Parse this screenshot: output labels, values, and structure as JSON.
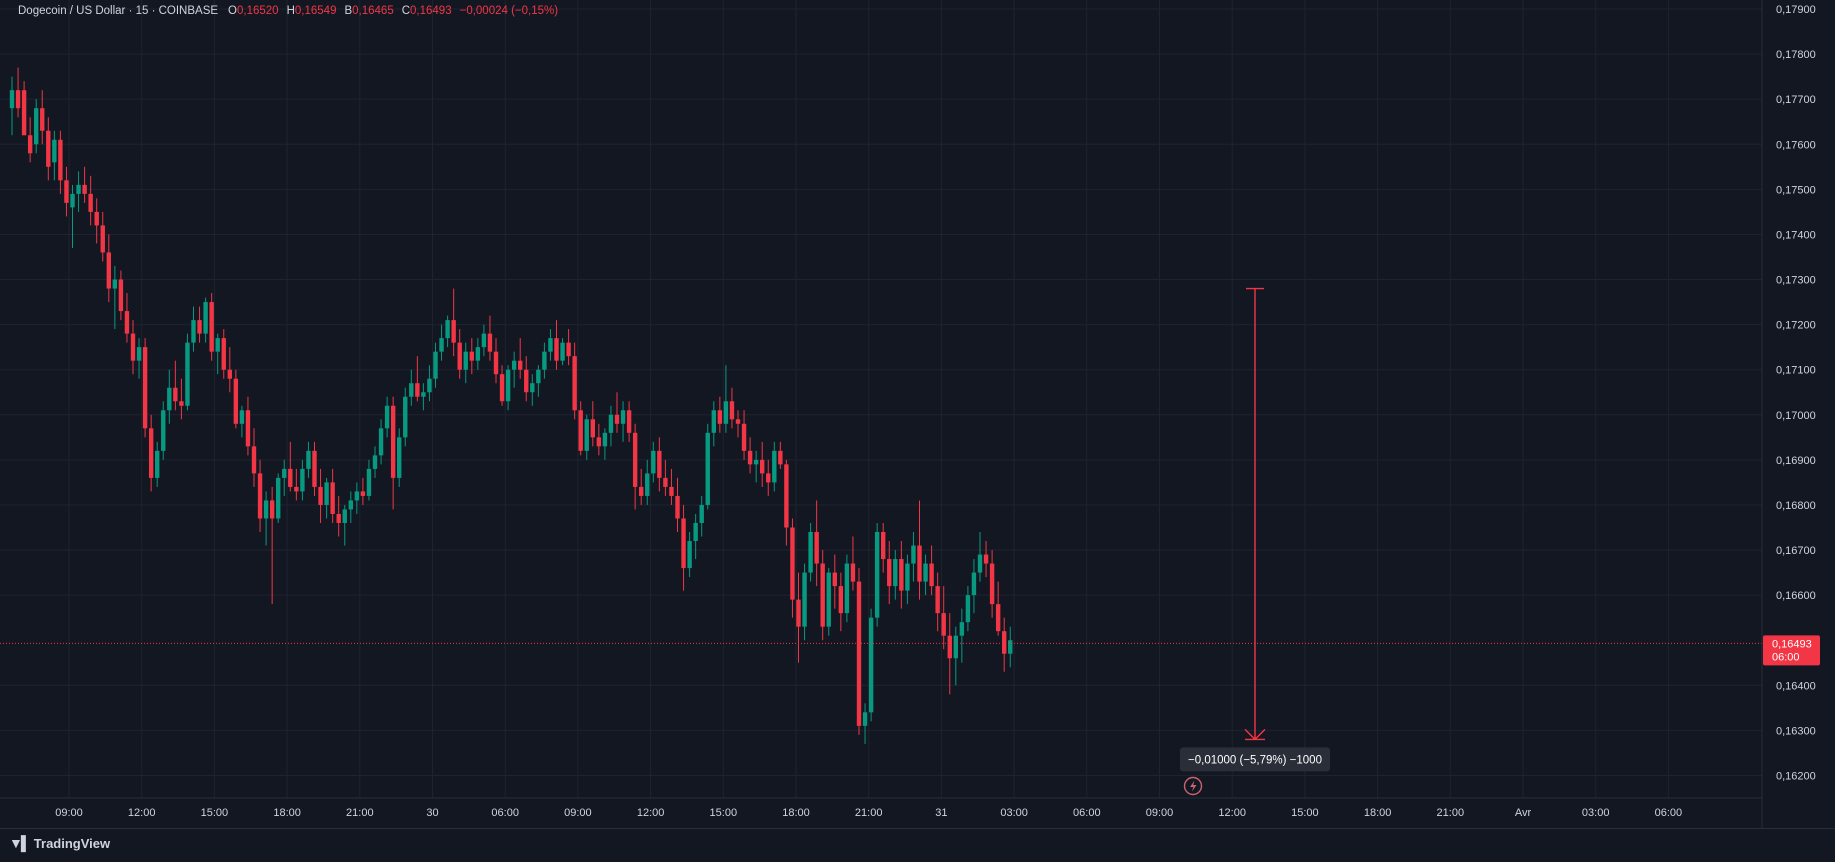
{
  "header": {
    "symbol": "Dogecoin / US Dollar · 15 · COINBASE",
    "o_label": "O",
    "o_value": "0,16520",
    "h_label": "H",
    "h_value": "0,16549",
    "b_label": "B",
    "b_value": "0,16465",
    "c_label": "C",
    "c_value": "0,16493",
    "change": "−0,00024 (−0,15%)"
  },
  "footer": {
    "brand": "TradingView"
  },
  "colors": {
    "up": "#089981",
    "down": "#f23645",
    "bg": "#131722",
    "grid": "#1f2330",
    "text": "#d1d4dc"
  },
  "chart_data": {
    "type": "candlestick",
    "symbol": "Dogecoin / US Dollar",
    "interval": "15",
    "exchange": "COINBASE",
    "ylim": [
      0.1615,
      0.1792
    ],
    "y_ticks": [
      "0,17900",
      "0,17800",
      "0,17700",
      "0,17600",
      "0,17500",
      "0,17400",
      "0,17300",
      "0,17200",
      "0,17100",
      "0,17000",
      "0,16900",
      "0,16800",
      "0,16700",
      "0,16600",
      "0,16400",
      "0,16300",
      "0,16200"
    ],
    "y_tick_values": [
      0.179,
      0.178,
      0.177,
      0.176,
      0.175,
      0.174,
      0.173,
      0.172,
      0.171,
      0.17,
      0.169,
      0.168,
      0.167,
      0.166,
      0.164,
      0.163,
      0.162
    ],
    "x_ticks": [
      "09:00",
      "12:00",
      "15:00",
      "18:00",
      "21:00",
      "30",
      "06:00",
      "09:00",
      "12:00",
      "15:00",
      "18:00",
      "21:00",
      "31",
      "03:00",
      "06:00",
      "09:00",
      "12:00",
      "15:00",
      "18:00",
      "21:00",
      "Avr",
      "03:00",
      "06:00"
    ],
    "last_price": {
      "value": 0.16493,
      "label": "0,16493",
      "countdown": "06:00"
    },
    "measure": {
      "from": 0.1728,
      "to": 0.1628,
      "label": "−0,01000 (−5,79%) −1000"
    },
    "candles": [
      [
        0.1768,
        0.1775,
        0.1762,
        0.1772
      ],
      [
        0.1772,
        0.1777,
        0.1766,
        0.1768
      ],
      [
        0.1772,
        0.1774,
        0.1762,
        0.1762
      ],
      [
        0.1762,
        0.1766,
        0.1756,
        0.1758
      ],
      [
        0.176,
        0.177,
        0.1758,
        0.1768
      ],
      [
        0.1768,
        0.1772,
        0.176,
        0.1763
      ],
      [
        0.1763,
        0.1766,
        0.1752,
        0.1755
      ],
      [
        0.1756,
        0.1763,
        0.1752,
        0.1761
      ],
      [
        0.1761,
        0.1763,
        0.1749,
        0.1752
      ],
      [
        0.1752,
        0.1755,
        0.1744,
        0.1747
      ],
      [
        0.1746,
        0.1751,
        0.1737,
        0.1749
      ],
      [
        0.1749,
        0.1754,
        0.1745,
        0.1751
      ],
      [
        0.1751,
        0.1755,
        0.1747,
        0.1749
      ],
      [
        0.1749,
        0.1753,
        0.1742,
        0.1745
      ],
      [
        0.1745,
        0.1748,
        0.1738,
        0.1742
      ],
      [
        0.1742,
        0.1745,
        0.1734,
        0.1736
      ],
      [
        0.1736,
        0.174,
        0.1725,
        0.1728
      ],
      [
        0.1728,
        0.1733,
        0.1719,
        0.173
      ],
      [
        0.173,
        0.1732,
        0.1721,
        0.1723
      ],
      [
        0.1723,
        0.1727,
        0.1716,
        0.1718
      ],
      [
        0.1718,
        0.1721,
        0.1709,
        0.1712
      ],
      [
        0.1712,
        0.1717,
        0.1708,
        0.1715
      ],
      [
        0.1715,
        0.1717,
        0.1695,
        0.1697
      ],
      [
        0.1697,
        0.17,
        0.1683,
        0.1686
      ],
      [
        0.1686,
        0.1694,
        0.1684,
        0.1692
      ],
      [
        0.1692,
        0.1703,
        0.169,
        0.1701
      ],
      [
        0.1701,
        0.171,
        0.1698,
        0.1706
      ],
      [
        0.1706,
        0.1712,
        0.1701,
        0.1703
      ],
      [
        0.1703,
        0.1708,
        0.1699,
        0.1702
      ],
      [
        0.1702,
        0.1718,
        0.1701,
        0.1716
      ],
      [
        0.1716,
        0.1724,
        0.1714,
        0.1721
      ],
      [
        0.1721,
        0.1724,
        0.1716,
        0.1718
      ],
      [
        0.1718,
        0.1726,
        0.1716,
        0.1725
      ],
      [
        0.1725,
        0.1727,
        0.1712,
        0.1714
      ],
      [
        0.1714,
        0.1718,
        0.1709,
        0.1717
      ],
      [
        0.1717,
        0.1719,
        0.1708,
        0.171
      ],
      [
        0.171,
        0.1715,
        0.1705,
        0.1708
      ],
      [
        0.1708,
        0.171,
        0.1697,
        0.1698
      ],
      [
        0.1698,
        0.1702,
        0.1695,
        0.1701
      ],
      [
        0.1701,
        0.1704,
        0.1691,
        0.1693
      ],
      [
        0.1693,
        0.1697,
        0.1684,
        0.1687
      ],
      [
        0.1687,
        0.169,
        0.1674,
        0.1677
      ],
      [
        0.1677,
        0.1683,
        0.1671,
        0.1681
      ],
      [
        0.1681,
        0.1684,
        0.1658,
        0.1677
      ],
      [
        0.1677,
        0.1687,
        0.1676,
        0.1686
      ],
      [
        0.1686,
        0.169,
        0.1682,
        0.1688
      ],
      [
        0.1688,
        0.1694,
        0.1683,
        0.1684
      ],
      [
        0.1684,
        0.1688,
        0.1681,
        0.1683
      ],
      [
        0.1683,
        0.169,
        0.1681,
        0.1688
      ],
      [
        0.1688,
        0.1694,
        0.1686,
        0.1692
      ],
      [
        0.1692,
        0.1694,
        0.1682,
        0.1684
      ],
      [
        0.1684,
        0.1688,
        0.1676,
        0.168
      ],
      [
        0.168,
        0.1686,
        0.1677,
        0.1685
      ],
      [
        0.1685,
        0.1688,
        0.1676,
        0.1678
      ],
      [
        0.1678,
        0.1682,
        0.1673,
        0.1676
      ],
      [
        0.1676,
        0.168,
        0.1671,
        0.1679
      ],
      [
        0.1679,
        0.1683,
        0.1676,
        0.1681
      ],
      [
        0.1681,
        0.1685,
        0.1678,
        0.1683
      ],
      [
        0.1683,
        0.1686,
        0.168,
        0.1682
      ],
      [
        0.1682,
        0.169,
        0.1681,
        0.1688
      ],
      [
        0.1688,
        0.1693,
        0.1686,
        0.1691
      ],
      [
        0.1691,
        0.1699,
        0.1689,
        0.1697
      ],
      [
        0.1697,
        0.1704,
        0.1695,
        0.1702
      ],
      [
        0.1702,
        0.1704,
        0.1679,
        0.1686
      ],
      [
        0.1686,
        0.1697,
        0.1684,
        0.1695
      ],
      [
        0.1695,
        0.1706,
        0.1693,
        0.1704
      ],
      [
        0.1704,
        0.171,
        0.1702,
        0.1707
      ],
      [
        0.1707,
        0.1713,
        0.1703,
        0.1704
      ],
      [
        0.1704,
        0.1707,
        0.1701,
        0.1705
      ],
      [
        0.1705,
        0.1711,
        0.1703,
        0.1708
      ],
      [
        0.1708,
        0.1716,
        0.1706,
        0.1714
      ],
      [
        0.1714,
        0.172,
        0.1712,
        0.1717
      ],
      [
        0.1717,
        0.1722,
        0.1715,
        0.1721
      ],
      [
        0.1721,
        0.1728,
        0.1713,
        0.1716
      ],
      [
        0.1716,
        0.1719,
        0.1708,
        0.171
      ],
      [
        0.171,
        0.1716,
        0.1707,
        0.1714
      ],
      [
        0.1714,
        0.1717,
        0.1709,
        0.1712
      ],
      [
        0.1712,
        0.1717,
        0.171,
        0.1715
      ],
      [
        0.1715,
        0.172,
        0.1713,
        0.1718
      ],
      [
        0.1718,
        0.1722,
        0.1712,
        0.1714
      ],
      [
        0.1714,
        0.1717,
        0.1707,
        0.1709
      ],
      [
        0.1709,
        0.1711,
        0.1702,
        0.1703
      ],
      [
        0.1703,
        0.1711,
        0.1701,
        0.171
      ],
      [
        0.171,
        0.1714,
        0.1706,
        0.1712
      ],
      [
        0.1712,
        0.1717,
        0.1708,
        0.171
      ],
      [
        0.171,
        0.1713,
        0.1703,
        0.1705
      ],
      [
        0.1705,
        0.1709,
        0.1702,
        0.1707
      ],
      [
        0.1707,
        0.1711,
        0.1704,
        0.171
      ],
      [
        0.171,
        0.1716,
        0.1708,
        0.1714
      ],
      [
        0.1714,
        0.1719,
        0.1712,
        0.1717
      ],
      [
        0.1717,
        0.1721,
        0.171,
        0.1712
      ],
      [
        0.1712,
        0.1717,
        0.1711,
        0.1716
      ],
      [
        0.1716,
        0.1719,
        0.1711,
        0.1713
      ],
      [
        0.1713,
        0.1716,
        0.1699,
        0.1701
      ],
      [
        0.1701,
        0.1703,
        0.1691,
        0.1692
      ],
      [
        0.1692,
        0.17,
        0.169,
        0.1699
      ],
      [
        0.1699,
        0.1703,
        0.1693,
        0.1695
      ],
      [
        0.1695,
        0.1698,
        0.1691,
        0.1693
      ],
      [
        0.1693,
        0.1697,
        0.169,
        0.1696
      ],
      [
        0.1696,
        0.1702,
        0.1693,
        0.17
      ],
      [
        0.17,
        0.1705,
        0.1696,
        0.1698
      ],
      [
        0.1698,
        0.1703,
        0.1694,
        0.1701
      ],
      [
        0.1701,
        0.1703,
        0.1694,
        0.1696
      ],
      [
        0.1696,
        0.1698,
        0.1679,
        0.1684
      ],
      [
        0.1684,
        0.1688,
        0.168,
        0.1682
      ],
      [
        0.1682,
        0.169,
        0.168,
        0.1687
      ],
      [
        0.1687,
        0.1694,
        0.1685,
        0.1692
      ],
      [
        0.1692,
        0.1695,
        0.1683,
        0.1686
      ],
      [
        0.1686,
        0.169,
        0.1682,
        0.1684
      ],
      [
        0.1684,
        0.1688,
        0.168,
        0.1682
      ],
      [
        0.1682,
        0.1686,
        0.1674,
        0.1677
      ],
      [
        0.1677,
        0.168,
        0.1661,
        0.1666
      ],
      [
        0.1666,
        0.1674,
        0.1664,
        0.1672
      ],
      [
        0.1672,
        0.1678,
        0.1668,
        0.1676
      ],
      [
        0.1676,
        0.1682,
        0.1673,
        0.168
      ],
      [
        0.168,
        0.1698,
        0.1679,
        0.1696
      ],
      [
        0.1696,
        0.1703,
        0.1693,
        0.1701
      ],
      [
        0.1701,
        0.1704,
        0.1696,
        0.1698
      ],
      [
        0.1698,
        0.1711,
        0.1696,
        0.1703
      ],
      [
        0.1703,
        0.1706,
        0.1697,
        0.1699
      ],
      [
        0.1699,
        0.1701,
        0.1695,
        0.1698
      ],
      [
        0.1698,
        0.1701,
        0.169,
        0.1692
      ],
      [
        0.1692,
        0.1695,
        0.1687,
        0.1689
      ],
      [
        0.1689,
        0.1692,
        0.1685,
        0.169
      ],
      [
        0.169,
        0.1694,
        0.1684,
        0.1687
      ],
      [
        0.1687,
        0.169,
        0.1682,
        0.1685
      ],
      [
        0.1685,
        0.1694,
        0.1683,
        0.1692
      ],
      [
        0.1692,
        0.1694,
        0.1688,
        0.1689
      ],
      [
        0.1689,
        0.169,
        0.1671,
        0.1675
      ],
      [
        0.1675,
        0.1677,
        0.1655,
        0.1659
      ],
      [
        0.1659,
        0.1665,
        0.1645,
        0.1653
      ],
      [
        0.1653,
        0.1667,
        0.165,
        0.1665
      ],
      [
        0.1665,
        0.1676,
        0.1663,
        0.1674
      ],
      [
        0.1674,
        0.1681,
        0.1662,
        0.1667
      ],
      [
        0.1667,
        0.167,
        0.165,
        0.1653
      ],
      [
        0.1653,
        0.1666,
        0.1651,
        0.1665
      ],
      [
        0.1665,
        0.1669,
        0.1657,
        0.1662
      ],
      [
        0.1662,
        0.1665,
        0.1652,
        0.1656
      ],
      [
        0.1656,
        0.1669,
        0.1654,
        0.1667
      ],
      [
        0.1667,
        0.1673,
        0.1661,
        0.1663
      ],
      [
        0.1663,
        0.1666,
        0.1629,
        0.1631
      ],
      [
        0.1631,
        0.1636,
        0.1627,
        0.1634
      ],
      [
        0.1634,
        0.1657,
        0.1632,
        0.1655
      ],
      [
        0.1655,
        0.1676,
        0.1653,
        0.1674
      ],
      [
        0.1674,
        0.1676,
        0.1665,
        0.1668
      ],
      [
        0.1668,
        0.1672,
        0.1658,
        0.1662
      ],
      [
        0.1662,
        0.167,
        0.1659,
        0.1668
      ],
      [
        0.1668,
        0.1672,
        0.1657,
        0.1661
      ],
      [
        0.1661,
        0.1669,
        0.1658,
        0.1667
      ],
      [
        0.1667,
        0.1674,
        0.1663,
        0.1671
      ],
      [
        0.1671,
        0.1681,
        0.1659,
        0.1663
      ],
      [
        0.1663,
        0.1669,
        0.166,
        0.1667
      ],
      [
        0.1667,
        0.1671,
        0.166,
        0.1662
      ],
      [
        0.1662,
        0.1665,
        0.1652,
        0.1656
      ],
      [
        0.1656,
        0.1662,
        0.1648,
        0.1651
      ],
      [
        0.1651,
        0.1656,
        0.1638,
        0.1646
      ],
      [
        0.1646,
        0.1653,
        0.164,
        0.1651
      ],
      [
        0.1651,
        0.1657,
        0.1645,
        0.1654
      ],
      [
        0.1654,
        0.1662,
        0.1652,
        0.166
      ],
      [
        0.166,
        0.1668,
        0.1656,
        0.1665
      ],
      [
        0.1665,
        0.1674,
        0.1663,
        0.1669
      ],
      [
        0.1669,
        0.1672,
        0.1664,
        0.1667
      ],
      [
        0.1667,
        0.167,
        0.1655,
        0.1658
      ],
      [
        0.1658,
        0.1663,
        0.1651,
        0.1652
      ],
      [
        0.1652,
        0.1655,
        0.1643,
        0.1647
      ],
      [
        0.1647,
        0.1653,
        0.1644,
        0.165
      ]
    ]
  }
}
